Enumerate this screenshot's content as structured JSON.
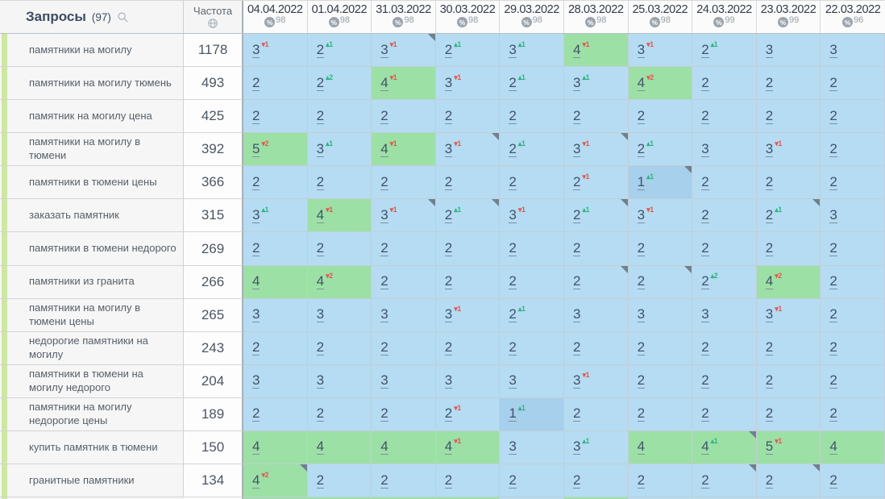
{
  "header": {
    "queries_label": "Запросы",
    "queries_count": "(97)",
    "frequency_label": "Частота"
  },
  "icons": {
    "search": "magnifier-outline",
    "frequency": "globe",
    "date_quality": "percent-circle"
  },
  "columns": [
    {
      "date": "04.04.2022",
      "quality": "98"
    },
    {
      "date": "01.04.2022",
      "quality": "98"
    },
    {
      "date": "31.03.2022",
      "quality": "98"
    },
    {
      "date": "30.03.2022",
      "quality": "98"
    },
    {
      "date": "29.03.2022",
      "quality": "98"
    },
    {
      "date": "28.03.2022",
      "quality": "98"
    },
    {
      "date": "25.03.2022",
      "quality": "98"
    },
    {
      "date": "24.03.2022",
      "quality": "99"
    },
    {
      "date": "23.03.2022",
      "quality": "99"
    },
    {
      "date": "22.03.2022",
      "quality": "96"
    }
  ],
  "rows": [
    {
      "keyword": "памятники на могилу",
      "frequency": "1178",
      "cells": [
        {
          "v": 3,
          "d": 1,
          "dir": "down"
        },
        {
          "v": 2,
          "d": 1,
          "dir": "up"
        },
        {
          "v": 3,
          "d": 1,
          "dir": "down",
          "note": true
        },
        {
          "v": 2,
          "d": 1,
          "dir": "up"
        },
        {
          "v": 3,
          "d": 1,
          "dir": "up"
        },
        {
          "v": 4,
          "d": 1,
          "dir": "down"
        },
        {
          "v": 3,
          "d": 1,
          "dir": "down"
        },
        {
          "v": 2,
          "d": 1,
          "dir": "up"
        },
        {
          "v": 3
        },
        {
          "v": 3
        }
      ]
    },
    {
      "keyword": "памятники на могилу тюмень",
      "frequency": "493",
      "cells": [
        {
          "v": 2
        },
        {
          "v": 2,
          "d": 2,
          "dir": "up"
        },
        {
          "v": 4,
          "d": 1,
          "dir": "down"
        },
        {
          "v": 3,
          "d": 1,
          "dir": "down"
        },
        {
          "v": 2,
          "d": 1,
          "dir": "up"
        },
        {
          "v": 3,
          "d": 1,
          "dir": "up"
        },
        {
          "v": 4,
          "d": 2,
          "dir": "down"
        },
        {
          "v": 2
        },
        {
          "v": 2
        },
        {
          "v": 2
        }
      ]
    },
    {
      "keyword": "памятник на могилу цена",
      "frequency": "425",
      "cells": [
        {
          "v": 2
        },
        {
          "v": 2
        },
        {
          "v": 2
        },
        {
          "v": 2
        },
        {
          "v": 2
        },
        {
          "v": 2
        },
        {
          "v": 2
        },
        {
          "v": 2
        },
        {
          "v": 2
        },
        {
          "v": 2
        }
      ]
    },
    {
      "keyword": "памятники на могилу в тюмени",
      "frequency": "392",
      "cells": [
        {
          "v": 5,
          "d": 2,
          "dir": "down"
        },
        {
          "v": 3,
          "d": 1,
          "dir": "up"
        },
        {
          "v": 4,
          "d": 1,
          "dir": "down"
        },
        {
          "v": 3,
          "d": 1,
          "dir": "down",
          "note": true
        },
        {
          "v": 2,
          "d": 1,
          "dir": "up"
        },
        {
          "v": 3,
          "d": 1,
          "dir": "down",
          "note": true
        },
        {
          "v": 2,
          "d": 1,
          "dir": "up"
        },
        {
          "v": 3
        },
        {
          "v": 3,
          "d": 1,
          "dir": "down"
        },
        {
          "v": 2
        }
      ]
    },
    {
      "keyword": "памятники в тюмени цены",
      "frequency": "366",
      "cells": [
        {
          "v": 2
        },
        {
          "v": 2
        },
        {
          "v": 2
        },
        {
          "v": 2
        },
        {
          "v": 2
        },
        {
          "v": 2,
          "d": 1,
          "dir": "down"
        },
        {
          "v": 1,
          "d": 1,
          "dir": "up",
          "note": true
        },
        {
          "v": 2
        },
        {
          "v": 2
        },
        {
          "v": 2
        }
      ]
    },
    {
      "keyword": "заказать памятник",
      "frequency": "315",
      "cells": [
        {
          "v": 3,
          "d": 1,
          "dir": "up"
        },
        {
          "v": 4,
          "d": 1,
          "dir": "down"
        },
        {
          "v": 3,
          "d": 1,
          "dir": "down",
          "note": true
        },
        {
          "v": 2,
          "d": 1,
          "dir": "up",
          "note": true
        },
        {
          "v": 3,
          "d": 1,
          "dir": "down"
        },
        {
          "v": 2,
          "d": 1,
          "dir": "up",
          "note": true
        },
        {
          "v": 3,
          "d": 1,
          "dir": "down"
        },
        {
          "v": 2
        },
        {
          "v": 2,
          "d": 1,
          "dir": "up",
          "note": true
        },
        {
          "v": 3
        }
      ]
    },
    {
      "keyword": "памятники в тюмени недорого",
      "frequency": "269",
      "cells": [
        {
          "v": 2
        },
        {
          "v": 2
        },
        {
          "v": 2
        },
        {
          "v": 2
        },
        {
          "v": 2
        },
        {
          "v": 2
        },
        {
          "v": 2
        },
        {
          "v": 2
        },
        {
          "v": 2
        },
        {
          "v": 2
        }
      ]
    },
    {
      "keyword": "памятники из гранита",
      "frequency": "266",
      "cells": [
        {
          "v": 4
        },
        {
          "v": 4,
          "d": 2,
          "dir": "down"
        },
        {
          "v": 2
        },
        {
          "v": 2
        },
        {
          "v": 2
        },
        {
          "v": 2,
          "note": true
        },
        {
          "v": 2,
          "note": true
        },
        {
          "v": 2,
          "d": 2,
          "dir": "up"
        },
        {
          "v": 4,
          "d": 2,
          "dir": "down"
        },
        {
          "v": 2
        }
      ]
    },
    {
      "keyword": "памятники на могилу в тюмени цены",
      "frequency": "265",
      "cells": [
        {
          "v": 3
        },
        {
          "v": 3
        },
        {
          "v": 3
        },
        {
          "v": 3,
          "d": 1,
          "dir": "down"
        },
        {
          "v": 2,
          "d": 1,
          "dir": "up"
        },
        {
          "v": 3
        },
        {
          "v": 3
        },
        {
          "v": 3
        },
        {
          "v": 3,
          "d": 1,
          "dir": "down"
        },
        {
          "v": 2
        }
      ]
    },
    {
      "keyword": "недорогие памятники на могилу",
      "frequency": "243",
      "cells": [
        {
          "v": 2
        },
        {
          "v": 2
        },
        {
          "v": 2
        },
        {
          "v": 2
        },
        {
          "v": 2
        },
        {
          "v": 2
        },
        {
          "v": 2
        },
        {
          "v": 2
        },
        {
          "v": 2
        },
        {
          "v": 2
        }
      ]
    },
    {
      "keyword": "памятники в тюмени на могилу недорого",
      "frequency": "204",
      "cells": [
        {
          "v": 3
        },
        {
          "v": 3
        },
        {
          "v": 3
        },
        {
          "v": 3
        },
        {
          "v": 3
        },
        {
          "v": 3,
          "d": 1,
          "dir": "down"
        },
        {
          "v": 2
        },
        {
          "v": 2
        },
        {
          "v": 2
        },
        {
          "v": 2
        }
      ]
    },
    {
      "keyword": "памятники на могилу недорогие цены",
      "frequency": "189",
      "cells": [
        {
          "v": 2
        },
        {
          "v": 2
        },
        {
          "v": 2
        },
        {
          "v": 2,
          "d": 1,
          "dir": "down"
        },
        {
          "v": 1,
          "d": 1,
          "dir": "up"
        },
        {
          "v": 2
        },
        {
          "v": 2
        },
        {
          "v": 2
        },
        {
          "v": 2
        },
        {
          "v": 2
        }
      ]
    },
    {
      "keyword": "купить памятник в тюмени",
      "frequency": "150",
      "cells": [
        {
          "v": 4
        },
        {
          "v": 4
        },
        {
          "v": 4
        },
        {
          "v": 4,
          "d": 1,
          "dir": "down"
        },
        {
          "v": 3
        },
        {
          "v": 3,
          "d": 1,
          "dir": "up"
        },
        {
          "v": 4
        },
        {
          "v": 4,
          "d": 1,
          "dir": "up",
          "note": true
        },
        {
          "v": 5,
          "d": 1,
          "dir": "down"
        },
        {
          "v": 4
        }
      ]
    },
    {
      "keyword": "гранитные памятники",
      "frequency": "134",
      "cells": [
        {
          "v": 4,
          "d": 2,
          "dir": "down",
          "note": true
        },
        {
          "v": 2
        },
        {
          "v": 2
        },
        {
          "v": 2
        },
        {
          "v": 2
        },
        {
          "v": 2
        },
        {
          "v": 2
        },
        {
          "v": 2,
          "note": true
        },
        {
          "v": 2,
          "note": true
        },
        {
          "v": 2
        }
      ]
    }
  ],
  "partial_row_colors": [
    "green",
    "green",
    "green",
    "green",
    "blue",
    "green",
    "blue",
    "blue",
    "blue",
    "blue"
  ],
  "colors": {
    "cell_blue": "#b5dcf2",
    "cell_green": "#9ce0a6",
    "cell_top1_blue": "#a6d0ec",
    "delta_up": "#2eb483",
    "delta_down": "#e25750",
    "position_text": "#41536a",
    "note_corner": "#71808f",
    "left_stripe": "#cfe7a2"
  }
}
